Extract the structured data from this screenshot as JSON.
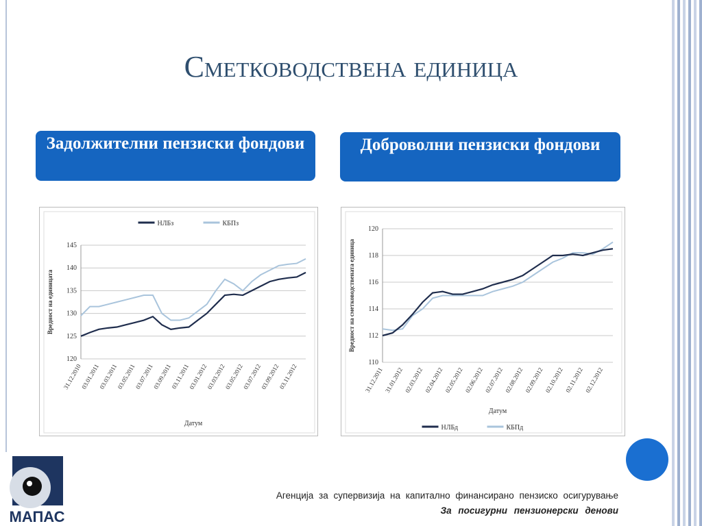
{
  "slide": {
    "title": "Сметководствена единица",
    "boxes": [
      "Задолжителни пензиски фондови",
      "Доброволни пензиски фондови"
    ],
    "logo": "МАПАС",
    "footer": {
      "line1": "Агенција за супервизија на капитално финансирано пензиско осигурување",
      "line2": "За посигурни пензионерски денови"
    }
  },
  "chart_data": [
    {
      "type": "line",
      "legend": "top",
      "y_label": "Вредност на единицата",
      "x_label": "Датум",
      "categories": [
        "31.12.2010",
        null,
        "03.01.2011",
        null,
        "03.03.2011",
        null,
        "03.05.2011",
        null,
        "03.07.2011",
        null,
        "03.09.2011",
        null,
        "03.11.2011",
        null,
        "03.01.2012",
        null,
        "03.03.2012",
        null,
        "03.05.2012",
        null,
        "03.07.2012",
        null,
        "03.09.2012",
        null,
        "03.11.2012",
        null
      ],
      "series": [
        {
          "name": "НЛБз",
          "color": "#1f2d4d",
          "values": [
            125,
            125.8,
            126.5,
            126.8,
            127,
            127.5,
            128,
            128.5,
            129.3,
            127.5,
            126.5,
            126.8,
            127,
            128.5,
            130,
            132,
            134,
            134.2,
            134,
            135,
            136,
            137,
            137.5,
            137.8,
            138,
            139
          ]
        },
        {
          "name": "КБПз",
          "color": "#a9c4dc",
          "values": [
            129.5,
            131.5,
            131.5,
            132,
            132.5,
            133,
            133.5,
            134,
            134,
            130,
            128.5,
            128.5,
            129,
            130.5,
            132,
            135,
            137.5,
            136.5,
            135,
            137,
            138.5,
            139.5,
            140.5,
            140.8,
            141,
            142
          ]
        }
      ],
      "ylim": [
        120,
        145
      ],
      "yticks": [
        120,
        125,
        130,
        135,
        140,
        145
      ]
    },
    {
      "type": "line",
      "legend": "bottom",
      "y_label": "Вредност на сметководствената единица",
      "x_label": "Датум",
      "categories": [
        "31.12.2011",
        null,
        "31.01.2012",
        null,
        "02.03.2012",
        null,
        "02.04.2012",
        null,
        "02.05.2012",
        null,
        "02.06.2012",
        null,
        "02.07.2012",
        null,
        "02.08.2012",
        null,
        "02.09.2012",
        null,
        "02.10.2012",
        null,
        "02.11.2012",
        null,
        "02.12.2012",
        null
      ],
      "series": [
        {
          "name": "НЛБд",
          "color": "#1f2d4d",
          "values": [
            112,
            112.2,
            112.8,
            113.6,
            114.5,
            115.2,
            115.3,
            115.1,
            115.1,
            115.3,
            115.5,
            115.8,
            116,
            116.2,
            116.5,
            117,
            117.5,
            118,
            118,
            118.1,
            118,
            118.2,
            118.4,
            118.5
          ]
        },
        {
          "name": "КБПд",
          "color": "#a9c4dc",
          "values": [
            112.5,
            112.4,
            112.5,
            113.5,
            114,
            114.8,
            115,
            115,
            115,
            115,
            115,
            115.3,
            115.5,
            115.7,
            116,
            116.5,
            117,
            117.5,
            117.8,
            118.2,
            118.2,
            118.1,
            118.5,
            119
          ]
        }
      ],
      "ylim": [
        110,
        120
      ],
      "yticks": [
        110,
        112,
        114,
        116,
        118,
        120
      ]
    }
  ]
}
